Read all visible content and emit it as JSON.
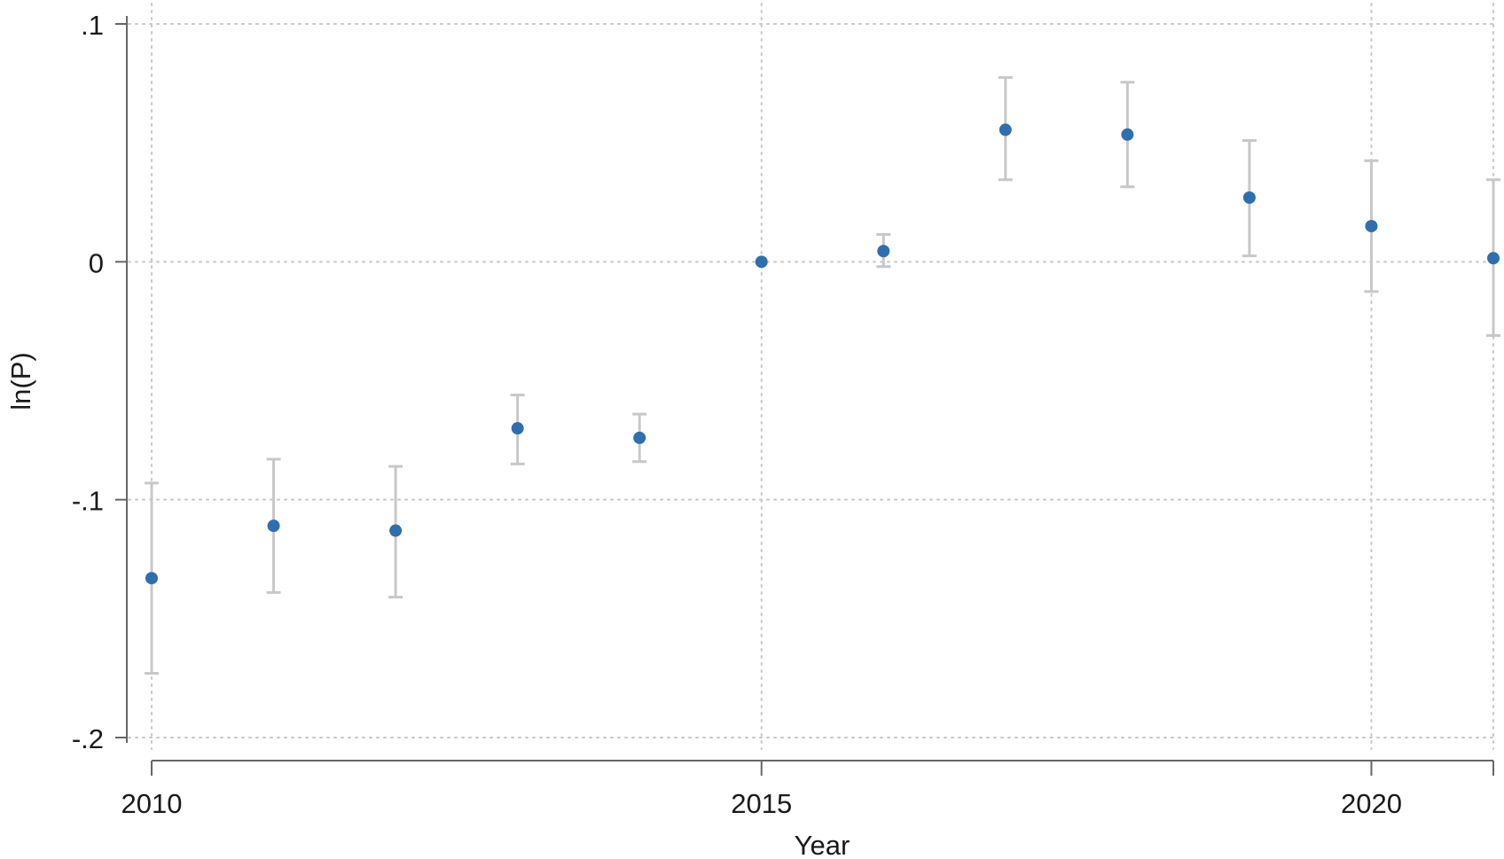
{
  "chart_data": {
    "type": "scatter",
    "title": "",
    "xlabel": "Year",
    "ylabel": "ln(P)",
    "xlim": [
      2010,
      2021
    ],
    "ylim": [
      -0.2,
      0.1
    ],
    "x_ticks": [
      2010,
      2015,
      2020
    ],
    "x_tick_labels": [
      "2010",
      "2015",
      "2020"
    ],
    "y_ticks": [
      0.1,
      0,
      -0.1,
      -0.2
    ],
    "y_tick_labels": [
      ".1",
      "0",
      "-.1",
      "-.2"
    ],
    "grid": true,
    "colors": {
      "point": "#2f6fae",
      "error_bar": "#c8c8c8",
      "grid": "#c8c8c8",
      "axis": "#666666"
    },
    "series": [
      {
        "x": [
          2010,
          2011,
          2012,
          2013,
          2014,
          2015,
          2016,
          2017,
          2018,
          2019,
          2020,
          2021
        ],
        "y": [
          -0.133,
          -0.111,
          -0.113,
          -0.07,
          -0.074,
          0.0,
          0.0045,
          0.0555,
          0.0535,
          0.027,
          0.015,
          0.0015
        ],
        "ci_low": [
          -0.173,
          -0.139,
          -0.141,
          -0.085,
          -0.084,
          0.0,
          -0.002,
          0.0345,
          0.0315,
          0.0025,
          -0.0125,
          -0.031
        ],
        "ci_high": [
          -0.093,
          -0.083,
          -0.086,
          -0.056,
          -0.064,
          0.0,
          0.0115,
          0.0775,
          0.0755,
          0.051,
          0.0425,
          0.0345
        ]
      }
    ]
  }
}
